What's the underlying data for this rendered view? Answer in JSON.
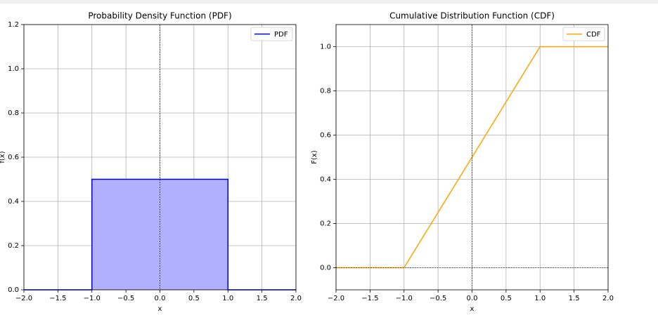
{
  "chart_data": [
    {
      "type": "line",
      "title": "Probability Density Function (PDF)",
      "xlabel": "x",
      "ylabel": "f(x)",
      "x": [
        -2,
        -1,
        -1,
        1,
        1,
        2
      ],
      "series": [
        {
          "name": "PDF",
          "color": "#0000ff",
          "fill_color": "#b0b0ff",
          "values": [
            0,
            0,
            0.5,
            0.5,
            0,
            0
          ]
        }
      ],
      "xlim": [
        -2,
        2
      ],
      "ylim": [
        0,
        1.2
      ],
      "xticks": [
        {
          "value": -2,
          "label": "−2.0"
        },
        {
          "value": -1.5,
          "label": "−1.5"
        },
        {
          "value": -1,
          "label": "−1.0"
        },
        {
          "value": -0.5,
          "label": "−0.5"
        },
        {
          "value": 0,
          "label": "0.0"
        },
        0.5,
        {
          "value": 1,
          "label": "1.0"
        },
        1.5,
        {
          "value": 2,
          "label": "2.0"
        }
      ],
      "yticks": [
        {
          "value": 0,
          "label": "0.0"
        },
        0.2,
        0.4,
        0.6,
        0.8,
        {
          "value": 1,
          "label": "1.0"
        },
        1.2
      ],
      "ref_lines": {
        "x": [
          0
        ],
        "y": [
          0
        ]
      },
      "grid": true,
      "legend": "upper-right"
    },
    {
      "type": "line",
      "title": "Cumulative Distribution Function (CDF)",
      "xlabel": "x",
      "ylabel": "F(x)",
      "x": [
        -2,
        -1,
        1,
        2
      ],
      "series": [
        {
          "name": "CDF",
          "color": "#ffa500",
          "values": [
            0,
            0,
            1,
            1
          ]
        }
      ],
      "xlim": [
        -2,
        2
      ],
      "ylim": [
        -0.1,
        1.1
      ],
      "xticks": [
        {
          "value": -2,
          "label": "−2.0"
        },
        {
          "value": -1.5,
          "label": "−1.5"
        },
        {
          "value": -1,
          "label": "−1.0"
        },
        {
          "value": -0.5,
          "label": "−0.5"
        },
        {
          "value": 0,
          "label": "0.0"
        },
        0.5,
        {
          "value": 1,
          "label": "1.0"
        },
        1.5,
        {
          "value": 2,
          "label": "2.0"
        }
      ],
      "yticks": [
        {
          "value": 0,
          "label": "0.0"
        },
        0.2,
        0.4,
        0.6,
        0.8,
        {
          "value": 1,
          "label": "1.0"
        }
      ],
      "ref_lines": {
        "x": [
          0
        ],
        "y": [
          0
        ]
      },
      "grid": true,
      "legend": "upper-right"
    }
  ]
}
